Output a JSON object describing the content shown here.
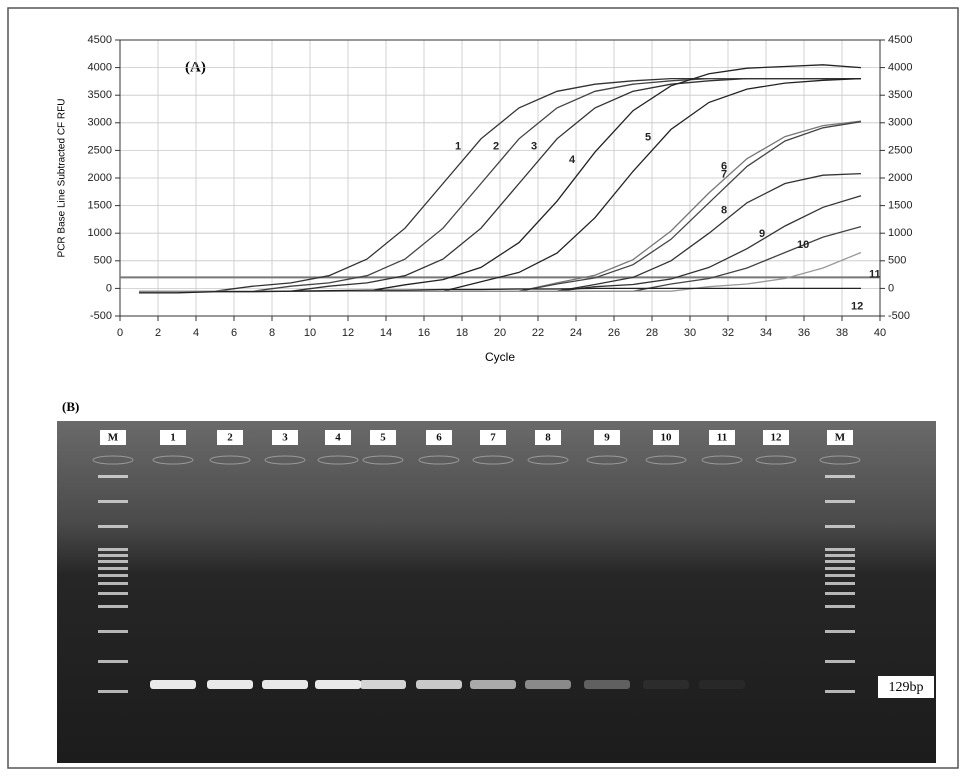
{
  "chart_data": {
    "type": "line",
    "title": "(A)",
    "x_label": "Cycle",
    "y_label": "PCR Base Line Subtracted CF RFU",
    "x": [
      1,
      3,
      5,
      7,
      9,
      11,
      13,
      15,
      17,
      19,
      21,
      23,
      25,
      27,
      29,
      31,
      33,
      35,
      37,
      39
    ],
    "series": [
      {
        "name": "1",
        "color": "#333333",
        "values": [
          -50,
          -50,
          -50,
          40,
          100,
          230,
          530,
          1090,
          1900,
          2710,
          3270,
          3570,
          3700,
          3760,
          3800,
          3800,
          3800,
          3800,
          3800,
          3800
        ]
      },
      {
        "name": "2",
        "color": "#444444",
        "values": [
          -50,
          -50,
          -50,
          -50,
          40,
          100,
          230,
          530,
          1090,
          1900,
          2710,
          3270,
          3570,
          3700,
          3760,
          3800,
          3800,
          3800,
          3800,
          3800
        ]
      },
      {
        "name": "3",
        "color": "#333333",
        "values": [
          -50,
          -50,
          -50,
          -50,
          -50,
          40,
          100,
          230,
          530,
          1090,
          1900,
          2710,
          3270,
          3570,
          3700,
          3760,
          3800,
          3800,
          3800,
          3800
        ]
      },
      {
        "name": "4",
        "color": "#222222",
        "values": [
          -50,
          -50,
          -50,
          -50,
          -50,
          -50,
          -50,
          65,
          160,
          380,
          830,
          1580,
          2470,
          3220,
          3670,
          3890,
          3990,
          4020,
          4050,
          4000
        ]
      },
      {
        "name": "5",
        "color": "#222222",
        "values": [
          -50,
          -50,
          -50,
          -50,
          -50,
          -50,
          -50,
          -50,
          -50,
          120,
          290,
          640,
          1280,
          2120,
          2880,
          3370,
          3610,
          3720,
          3770,
          3800
        ]
      },
      {
        "name": "6",
        "color": "#777777",
        "values": [
          -50,
          -50,
          -50,
          -50,
          -50,
          -50,
          -50,
          -50,
          -50,
          -50,
          -50,
          100,
          240,
          520,
          1040,
          1730,
          2350,
          2750,
          2950,
          3030
        ]
      },
      {
        "name": "7",
        "color": "#444444",
        "values": [
          -50,
          -50,
          -50,
          -50,
          -50,
          -50,
          -50,
          -50,
          -50,
          -50,
          -50,
          80,
          190,
          430,
          890,
          1550,
          2210,
          2670,
          2910,
          3020
        ]
      },
      {
        "name": "8",
        "color": "#333333",
        "values": [
          -50,
          -50,
          -50,
          -50,
          -50,
          -50,
          -50,
          -50,
          -50,
          -50,
          -50,
          -50,
          70,
          200,
          500,
          1000,
          1550,
          1900,
          2050,
          2080
        ]
      },
      {
        "name": "9",
        "color": "#333333",
        "values": [
          -50,
          -50,
          -50,
          -50,
          -50,
          -50,
          -50,
          -50,
          -50,
          -50,
          -50,
          -50,
          30,
          70,
          170,
          380,
          720,
          1130,
          1470,
          1680
        ]
      },
      {
        "name": "10",
        "color": "#444444",
        "values": [
          -50,
          -50,
          -50,
          -50,
          -50,
          -50,
          -50,
          -50,
          -50,
          -50,
          -50,
          -50,
          -50,
          -50,
          80,
          180,
          370,
          650,
          930,
          1120
        ]
      },
      {
        "name": "11",
        "color": "#999999",
        "values": [
          -50,
          -50,
          -50,
          -50,
          -50,
          -50,
          -50,
          -50,
          -50,
          -50,
          -50,
          -50,
          -50,
          -50,
          -50,
          30,
          80,
          180,
          370,
          650
        ]
      },
      {
        "name": "12",
        "color": "#222222",
        "values": [
          -80,
          -80,
          -60,
          -60,
          -50,
          -40,
          -30,
          -30,
          -20,
          -20,
          -10,
          -10,
          0,
          0,
          0,
          0,
          0,
          0,
          0,
          0
        ]
      }
    ],
    "threshold": 200,
    "xlim": [
      0,
      40
    ],
    "xticks": [
      0,
      2,
      4,
      6,
      8,
      10,
      12,
      14,
      16,
      18,
      20,
      22,
      24,
      26,
      28,
      30,
      32,
      34,
      36,
      38,
      40
    ],
    "ylim": [
      -500,
      4500
    ],
    "yticks": [
      -500,
      0,
      500,
      1000,
      1500,
      2000,
      2500,
      3000,
      3500,
      4000,
      4500
    ],
    "y2lim": [
      -500,
      4500
    ],
    "y2ticks": [
      -500,
      0,
      500,
      1000,
      1500,
      2000,
      2500,
      3000,
      3500,
      4000,
      4500
    ],
    "grid": true
  },
  "gel": {
    "title": "(B)",
    "lanes": [
      "M",
      "1",
      "2",
      "3",
      "4",
      "5",
      "6",
      "7",
      "8",
      "9",
      "10",
      "11",
      "12",
      "M"
    ],
    "band_label": "129bp"
  }
}
